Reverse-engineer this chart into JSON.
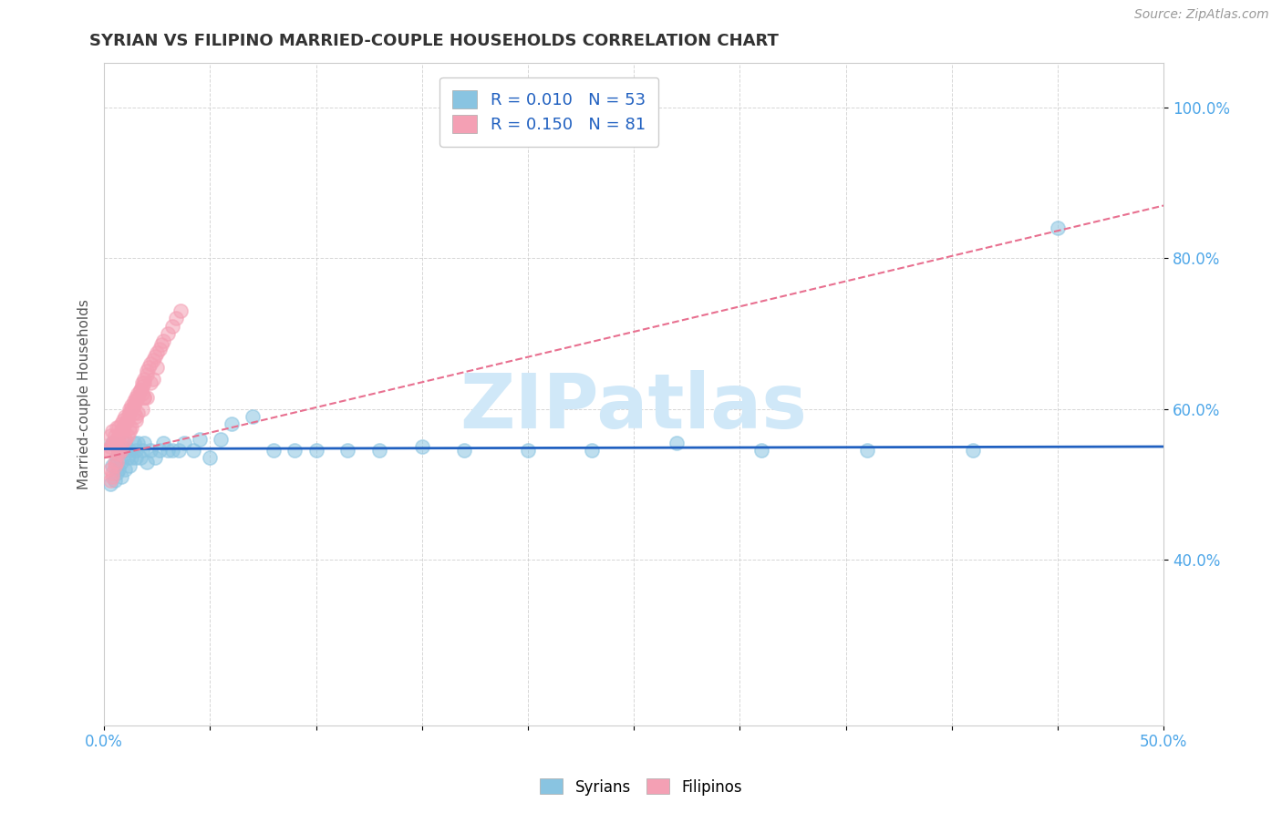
{
  "title": "SYRIAN VS FILIPINO MARRIED-COUPLE HOUSEHOLDS CORRELATION CHART",
  "source": "Source: ZipAtlas.com",
  "ylabel": "Married-couple Households",
  "ytick_labels": [
    "40.0%",
    "60.0%",
    "80.0%",
    "100.0%"
  ],
  "ytick_values": [
    0.4,
    0.6,
    0.8,
    1.0
  ],
  "xlim": [
    0.0,
    0.5
  ],
  "ylim": [
    0.18,
    1.06
  ],
  "legend_label_syr": "R = 0.010   N = 53",
  "legend_label_fil": "R = 0.150   N = 81",
  "legend_bottom": [
    "Syrians",
    "Filipinos"
  ],
  "syrians_color": "#89c4e1",
  "filipinos_color": "#f4a0b4",
  "trendline_syrian_color": "#2060c0",
  "trendline_filipino_color": "#e87090",
  "legend_text_color": "#2060c0",
  "ytick_color": "#4da6e8",
  "xtick_color": "#4da6e8",
  "watermark_color": "#d0e8f8",
  "syrians_x": [
    0.003,
    0.004,
    0.004,
    0.005,
    0.006,
    0.006,
    0.007,
    0.007,
    0.008,
    0.008,
    0.009,
    0.01,
    0.01,
    0.011,
    0.012,
    0.012,
    0.013,
    0.014,
    0.015,
    0.015,
    0.016,
    0.017,
    0.018,
    0.019,
    0.02,
    0.022,
    0.024,
    0.026,
    0.028,
    0.03,
    0.032,
    0.035,
    0.038,
    0.042,
    0.045,
    0.05,
    0.055,
    0.06,
    0.07,
    0.08,
    0.09,
    0.1,
    0.115,
    0.13,
    0.15,
    0.17,
    0.2,
    0.23,
    0.27,
    0.31,
    0.36,
    0.41,
    0.45
  ],
  "syrians_y": [
    0.5,
    0.525,
    0.555,
    0.505,
    0.515,
    0.535,
    0.52,
    0.545,
    0.51,
    0.53,
    0.545,
    0.52,
    0.555,
    0.535,
    0.525,
    0.545,
    0.535,
    0.555,
    0.535,
    0.545,
    0.555,
    0.535,
    0.545,
    0.555,
    0.53,
    0.545,
    0.535,
    0.545,
    0.555,
    0.545,
    0.545,
    0.545,
    0.555,
    0.545,
    0.56,
    0.535,
    0.56,
    0.58,
    0.59,
    0.545,
    0.545,
    0.545,
    0.545,
    0.545,
    0.55,
    0.545,
    0.545,
    0.545,
    0.555,
    0.545,
    0.545,
    0.545,
    0.84
  ],
  "filipinos_x": [
    0.001,
    0.002,
    0.003,
    0.003,
    0.004,
    0.004,
    0.005,
    0.005,
    0.006,
    0.006,
    0.007,
    0.007,
    0.008,
    0.008,
    0.009,
    0.009,
    0.01,
    0.01,
    0.011,
    0.011,
    0.012,
    0.012,
    0.013,
    0.013,
    0.014,
    0.014,
    0.015,
    0.015,
    0.016,
    0.016,
    0.017,
    0.017,
    0.018,
    0.018,
    0.019,
    0.019,
    0.02,
    0.02,
    0.021,
    0.022,
    0.023,
    0.024,
    0.025,
    0.026,
    0.027,
    0.028,
    0.03,
    0.032,
    0.034,
    0.036,
    0.003,
    0.005,
    0.007,
    0.01,
    0.012,
    0.015,
    0.018,
    0.02,
    0.004,
    0.006,
    0.008,
    0.01,
    0.013,
    0.016,
    0.019,
    0.022,
    0.003,
    0.005,
    0.008,
    0.012,
    0.004,
    0.007,
    0.011,
    0.015,
    0.019,
    0.023,
    0.006,
    0.009,
    0.014,
    0.018,
    0.025
  ],
  "filipinos_y": [
    0.545,
    0.545,
    0.55,
    0.565,
    0.555,
    0.57,
    0.555,
    0.565,
    0.56,
    0.575,
    0.565,
    0.575,
    0.57,
    0.58,
    0.575,
    0.585,
    0.58,
    0.59,
    0.585,
    0.59,
    0.595,
    0.6,
    0.6,
    0.605,
    0.605,
    0.61,
    0.61,
    0.615,
    0.615,
    0.62,
    0.625,
    0.625,
    0.63,
    0.635,
    0.635,
    0.64,
    0.645,
    0.65,
    0.655,
    0.66,
    0.665,
    0.67,
    0.675,
    0.68,
    0.685,
    0.69,
    0.7,
    0.71,
    0.72,
    0.73,
    0.52,
    0.53,
    0.545,
    0.56,
    0.57,
    0.585,
    0.6,
    0.615,
    0.51,
    0.53,
    0.545,
    0.56,
    0.575,
    0.595,
    0.615,
    0.635,
    0.505,
    0.525,
    0.55,
    0.575,
    0.515,
    0.54,
    0.565,
    0.59,
    0.615,
    0.64,
    0.55,
    0.57,
    0.595,
    0.62,
    0.655
  ],
  "syr_trend_x": [
    0.0,
    0.5
  ],
  "syr_trend_y": [
    0.547,
    0.55
  ],
  "fil_trend_x": [
    0.0,
    0.5
  ],
  "fil_trend_y": [
    0.535,
    0.87
  ]
}
